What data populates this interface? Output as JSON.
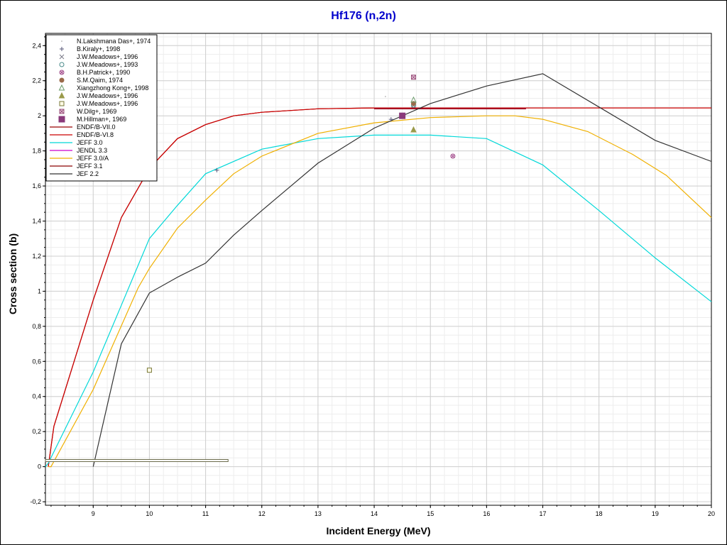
{
  "chart_data": {
    "type": "scatter",
    "title": "Hf176 (n,2n)",
    "xlabel": "Incident Energy (MeV)",
    "ylabel": "Cross section (b)",
    "xlim": [
      8.15,
      20
    ],
    "ylim": [
      -0.22,
      2.47
    ],
    "grid": true,
    "legend_position": "top-left",
    "x_ticks": [
      {
        "v": 9,
        "label": "9"
      },
      {
        "v": 10,
        "label": "10"
      },
      {
        "v": 11,
        "label": "11"
      },
      {
        "v": 12,
        "label": "12"
      },
      {
        "v": 13,
        "label": "13"
      },
      {
        "v": 14,
        "label": "14"
      },
      {
        "v": 15,
        "label": "15"
      },
      {
        "v": 16,
        "label": "16"
      },
      {
        "v": 17,
        "label": "17"
      },
      {
        "v": 18,
        "label": "18"
      },
      {
        "v": 19,
        "label": "19"
      },
      {
        "v": 20,
        "label": "20"
      }
    ],
    "y_ticks": [
      {
        "v": -0.2,
        "label": "-0,2"
      },
      {
        "v": 0,
        "label": "0"
      },
      {
        "v": 0.2,
        "label": "0,2"
      },
      {
        "v": 0.4,
        "label": "0,4"
      },
      {
        "v": 0.6,
        "label": "0,6"
      },
      {
        "v": 0.8,
        "label": "0,8"
      },
      {
        "v": 1.0,
        "label": "1"
      },
      {
        "v": 1.2,
        "label": "1,2"
      },
      {
        "v": 1.4,
        "label": "1,4"
      },
      {
        "v": 1.6,
        "label": "1,6"
      },
      {
        "v": 1.8,
        "label": "1,8"
      },
      {
        "v": 2.0,
        "label": "2"
      },
      {
        "v": 2.2,
        "label": "2,2"
      },
      {
        "v": 2.4,
        "label": "2,4"
      }
    ],
    "experimental": [
      {
        "name": "N.Lakshmana Das+, 1974",
        "marker": "dot",
        "color": "#999999",
        "points": [
          [
            14.2,
            2.11
          ]
        ]
      },
      {
        "name": "B.Kiraly+, 1998",
        "marker": "plus",
        "color": "#555577",
        "points": [
          [
            11.2,
            1.69
          ],
          [
            14.3,
            1.98
          ]
        ]
      },
      {
        "name": "J.W.Meadows+, 1996",
        "marker": "x",
        "color": "#7a7a8a",
        "points": [
          [
            14.7,
            2.06
          ]
        ]
      },
      {
        "name": "J.W.Meadows+, 1993",
        "marker": "circle-open",
        "color": "#4a8a8a",
        "points": [
          [
            14.7,
            2.06
          ]
        ]
      },
      {
        "name": "B.H.Patrick+, 1990",
        "marker": "circle-x",
        "color": "#a0508a",
        "points": [
          [
            15.4,
            1.77
          ]
        ]
      },
      {
        "name": "S.M.Qaim, 1974",
        "marker": "circle-filled",
        "color": "#9a6a4a",
        "points": [
          [
            14.7,
            2.07
          ]
        ]
      },
      {
        "name": "Xiangzhong Kong+, 1998",
        "marker": "triangle-open",
        "color": "#6a9a6a",
        "points": [
          [
            14.7,
            2.09
          ]
        ]
      },
      {
        "name": "J.W.Meadows+, 1996",
        "marker": "triangle-filled",
        "color": "#9a9a4a",
        "points": [
          [
            14.7,
            1.92
          ]
        ]
      },
      {
        "name": "J.W.Meadows+, 1996",
        "marker": "square-open",
        "color": "#7a7a3a",
        "points": [
          [
            10.0,
            0.55
          ]
        ]
      },
      {
        "name": "W.Dilg+, 1969",
        "marker": "square-x",
        "color": "#9a507a",
        "points": [
          [
            14.7,
            2.22
          ]
        ]
      },
      {
        "name": "M.Hillman+, 1969",
        "marker": "square-filled",
        "color": "#8a3a7a",
        "points": [
          [
            14.5,
            2.0
          ]
        ]
      }
    ],
    "series": [
      {
        "name": "ENDF/B-VII.0",
        "color": "#990000",
        "x": [
          8.2,
          8.3,
          9.0,
          9.5,
          10.0,
          10.5,
          11.0,
          11.5,
          12.0,
          13.0,
          14.0,
          15.0,
          16.0,
          16.7
        ],
        "y": [
          0.0,
          0.23,
          0.95,
          1.42,
          1.7,
          1.87,
          1.95,
          2.0,
          2.02,
          2.04,
          2.045,
          2.045,
          2.045,
          2.045
        ]
      },
      {
        "name": "ENDF/B-VI.8",
        "color": "#cc0000",
        "x": [
          8.2,
          8.3,
          9.0,
          9.5,
          10.0,
          10.5,
          11.0,
          11.5,
          12.0,
          13.0,
          14.0,
          15.0,
          16.0,
          17.0,
          18.0,
          19.0,
          20.0
        ],
        "y": [
          0.0,
          0.23,
          0.95,
          1.42,
          1.7,
          1.87,
          1.95,
          2.0,
          2.02,
          2.04,
          2.045,
          2.045,
          2.045,
          2.045,
          2.045,
          2.045,
          2.045
        ]
      },
      {
        "name": "JEFF 3.0",
        "color": "#00d8d8",
        "x": [
          8.15,
          8.2,
          9.0,
          9.5,
          10.0,
          10.5,
          11.0,
          12.0,
          13.0,
          14.0,
          15.0,
          16.0,
          17.0,
          18.0,
          19.0,
          20.0
        ],
        "y": [
          0.0,
          0.02,
          0.54,
          0.92,
          1.3,
          1.49,
          1.67,
          1.81,
          1.87,
          1.89,
          1.89,
          1.87,
          1.72,
          1.46,
          1.19,
          0.94
        ]
      },
      {
        "name": "JENDL 3.3",
        "color": "#cc00cc",
        "x": [
          14.0,
          16.7
        ],
        "y": [
          2.04,
          2.04
        ]
      },
      {
        "name": "JEFF 3.0/A",
        "color": "#f0b000",
        "x": [
          8.2,
          8.25,
          9.0,
          9.8,
          10.0,
          10.5,
          11.0,
          11.5,
          12.0,
          13.0,
          14.0,
          15.0,
          16.0,
          16.5,
          17.0,
          17.8,
          18.6,
          19.2,
          20.0
        ],
        "y": [
          0.0,
          0.0,
          0.44,
          1.02,
          1.13,
          1.36,
          1.52,
          1.67,
          1.77,
          1.9,
          1.96,
          1.99,
          2.0,
          2.0,
          1.98,
          1.91,
          1.78,
          1.66,
          1.42
        ]
      },
      {
        "name": "JEFF 3.1",
        "color": "#8a0000",
        "x": [
          14.0,
          16.7
        ],
        "y": [
          2.04,
          2.04
        ]
      },
      {
        "name": "JEF 2.2",
        "color": "#333333",
        "x": [
          9.0,
          9.5,
          10.0,
          10.5,
          11.0,
          11.5,
          12.0,
          13.0,
          14.0,
          15.0,
          16.0,
          17.0,
          18.0,
          19.0,
          20.0
        ],
        "y": [
          0.0,
          0.7,
          0.99,
          1.08,
          1.16,
          1.32,
          1.46,
          1.73,
          1.93,
          2.07,
          2.17,
          2.24,
          2.05,
          1.86,
          1.74
        ]
      }
    ],
    "annotation_bar": {
      "x_start": 8.15,
      "x_end": 11.4,
      "y_center": 0.035,
      "height": 0.012
    }
  }
}
